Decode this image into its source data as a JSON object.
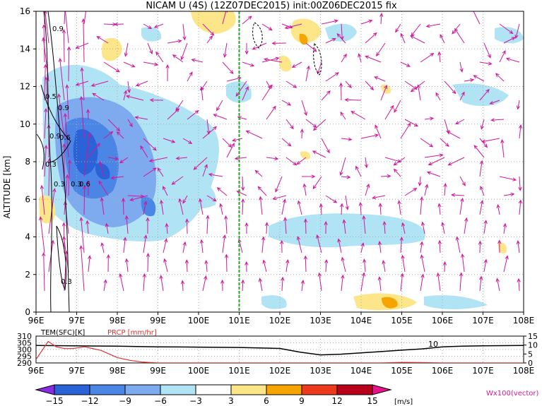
{
  "chart_data": [
    {
      "type": "heatmap",
      "title": "NICAM U (4S) (12Z07DEC2015) init:00Z06DEC2015 fix",
      "ylabel": "ALTITUDE [km]",
      "x_ticks": [
        "96E",
        "97E",
        "98E",
        "99E",
        "100E",
        "101E",
        "102E",
        "103E",
        "104E",
        "105E",
        "106E",
        "107E",
        "108E"
      ],
      "x_range": [
        96,
        108
      ],
      "y_ticks": [
        "0",
        "2",
        "4",
        "6",
        "8",
        "10",
        "12",
        "14",
        "16"
      ],
      "y_range": [
        0,
        16
      ],
      "grid": true,
      "marker_line_x": 101,
      "colorbar": {
        "labels": [
          "−15",
          "−12",
          "−9",
          "−6",
          "−3",
          "3",
          "6",
          "9",
          "12",
          "15"
        ],
        "unit": "[m/s]",
        "colors": [
          "#8a2be2",
          "#2a62d8",
          "#4b86e6",
          "#7eaaf0",
          "#b0e4f5",
          "#ffffff",
          "#fde68a",
          "#f6a400",
          "#ee3a1c",
          "#b8001c",
          "#e8128a"
        ]
      },
      "vector_note": "Wx100(vector)",
      "contour_labels": [
        "0.9",
        "0.9",
        "0.5",
        "0.3",
        "0.3",
        "0.3",
        "0.6",
        "0.9",
        "0.6",
        "0.3"
      ]
    },
    {
      "type": "line",
      "series": [
        {
          "name": "TEM(SFC)[K]",
          "color": "#000000",
          "x": [
            96,
            98,
            99,
            100,
            101,
            102,
            102.5,
            103,
            103.5,
            104,
            104.5,
            105,
            105.5,
            106,
            106.5,
            107,
            108
          ],
          "values": [
            303,
            302.5,
            302,
            301.8,
            301.5,
            300.8,
            298,
            296,
            296.5,
            297.5,
            298.5,
            299.5,
            300.5,
            302,
            302.5,
            302.8,
            303
          ]
        },
        {
          "name": "PRCP [mm/hr]",
          "color": "#e03030",
          "x": [
            96,
            96.15,
            96.3,
            96.5,
            96.7,
            96.9,
            97.2,
            97.6,
            98,
            98.3,
            98.6,
            99,
            100,
            104.5,
            105,
            105.5,
            106,
            108
          ],
          "values": [
            2,
            7,
            12,
            9,
            8,
            8,
            9,
            7,
            3,
            1.5,
            0.5,
            0,
            0,
            0,
            0.3,
            0.2,
            0,
            0
          ]
        }
      ],
      "left_axis": {
        "ticks": [
          "310",
          "305",
          "300",
          "295",
          "290"
        ],
        "range": [
          290,
          310
        ]
      },
      "right_axis": {
        "ticks": [
          "15",
          "10",
          "5",
          "0"
        ],
        "range": [
          0,
          15
        ]
      },
      "x_ticks": [
        "96E",
        "97E",
        "98E",
        "99E",
        "100E",
        "101E",
        "102E",
        "103E",
        "104E",
        "105E",
        "106E",
        "107E",
        "108E"
      ],
      "x_range": [
        96,
        108
      ],
      "annotation": "10"
    }
  ]
}
